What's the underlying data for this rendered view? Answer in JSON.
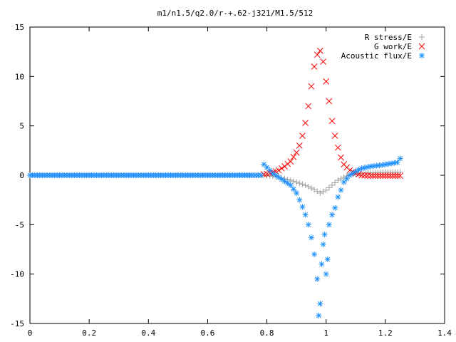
{
  "chart_data": {
    "type": "scatter",
    "title": "m1/n1.5/q2.0/r-+.62-j321/M1.5/512",
    "xlabel": "",
    "ylabel": "",
    "xlim": [
      0,
      1.4
    ],
    "ylim": [
      -15,
      15
    ],
    "xticks": [
      "0",
      "0.2",
      "0.4",
      "0.6",
      "0.8",
      "1",
      "1.2",
      "1.4"
    ],
    "yticks": [
      "15",
      "10",
      "5",
      "0",
      "-5",
      "-10",
      "-15"
    ],
    "grid": false,
    "legend_position": "top-right",
    "series": [
      {
        "name": "R stress/E",
        "marker": "plus",
        "color": "#a0a0a0",
        "x": [
          0.0,
          0.1,
          0.2,
          0.3,
          0.4,
          0.5,
          0.6,
          0.7,
          0.78,
          0.8,
          0.82,
          0.84,
          0.86,
          0.88,
          0.9,
          0.92,
          0.94,
          0.96,
          0.98,
          1.0,
          1.02,
          1.04,
          1.06,
          1.08,
          1.1,
          1.15,
          1.2,
          1.25
        ],
        "y": [
          0,
          0,
          0,
          0,
          0,
          0,
          0,
          0,
          0,
          -0.05,
          -0.1,
          -0.2,
          -0.35,
          -0.5,
          -0.7,
          -0.9,
          -1.15,
          -1.45,
          -1.8,
          -1.5,
          -1.0,
          -0.5,
          -0.2,
          0.05,
          0.15,
          0.25,
          0.3,
          0.3
        ]
      },
      {
        "name": "G work/E",
        "marker": "cross",
        "color": "#ff0000",
        "x": [
          0.79,
          0.8,
          0.82,
          0.84,
          0.86,
          0.88,
          0.9,
          0.91,
          0.92,
          0.93,
          0.94,
          0.95,
          0.96,
          0.97,
          0.98,
          0.99,
          1.0,
          1.01,
          1.02,
          1.03,
          1.04,
          1.05,
          1.06,
          1.08,
          1.1,
          1.12,
          1.15,
          1.2,
          1.25
        ],
        "y": [
          0.1,
          0.15,
          0.3,
          0.5,
          0.9,
          1.4,
          2.3,
          3.0,
          4.0,
          5.3,
          7.0,
          9.0,
          11.0,
          12.2,
          12.6,
          11.5,
          9.5,
          7.5,
          5.5,
          4.0,
          2.8,
          1.8,
          1.1,
          0.5,
          0.2,
          0.0,
          -0.05,
          -0.05,
          -0.05
        ]
      },
      {
        "name": "Acoustic flux/E",
        "marker": "star",
        "color": "#1e90ff",
        "x": [
          0.0,
          0.05,
          0.1,
          0.15,
          0.2,
          0.25,
          0.3,
          0.35,
          0.4,
          0.45,
          0.5,
          0.55,
          0.6,
          0.65,
          0.7,
          0.75,
          0.78,
          0.79,
          0.8,
          0.81,
          0.82,
          0.83,
          0.84,
          0.85,
          0.86,
          0.87,
          0.88,
          0.89,
          0.9,
          0.91,
          0.92,
          0.93,
          0.94,
          0.95,
          0.96,
          0.97,
          0.975,
          0.98,
          0.985,
          0.99,
          0.995,
          1.0,
          1.005,
          1.01,
          1.02,
          1.03,
          1.04,
          1.05,
          1.06,
          1.08,
          1.1,
          1.12,
          1.15,
          1.18,
          1.2,
          1.22,
          1.24,
          1.25
        ],
        "y": [
          0,
          0,
          0,
          0,
          0,
          0,
          0,
          0,
          0,
          0,
          0,
          0,
          0,
          0,
          0,
          0,
          0,
          1.1,
          0.8,
          0.5,
          0.2,
          0.0,
          -0.2,
          -0.4,
          -0.6,
          -0.8,
          -1.0,
          -1.4,
          -1.8,
          -2.5,
          -3.2,
          -4.0,
          -5.0,
          -6.3,
          -8.0,
          -10.5,
          -14.2,
          -13.0,
          -9.0,
          -7.0,
          -6.0,
          -10.0,
          -8.5,
          -5.0,
          -4.0,
          -3.3,
          -2.2,
          -1.5,
          -0.7,
          0.0,
          0.4,
          0.7,
          0.9,
          1.0,
          1.1,
          1.2,
          1.3,
          1.7
        ]
      }
    ]
  }
}
